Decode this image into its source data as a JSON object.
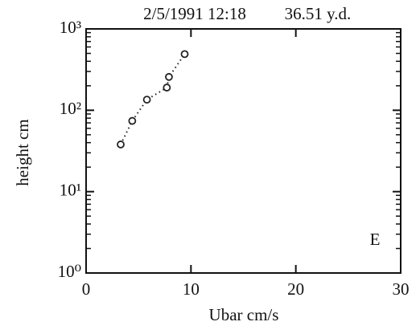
{
  "chart_data": {
    "type": "line",
    "title": "2/5/1991 12:18",
    "subtitle": "36.51 y.d.",
    "x_label": "Ubar cm/s",
    "y_label": "height cm",
    "annotation": "E",
    "x": [
      3.3,
      4.4,
      5.8,
      7.7,
      7.9,
      9.4
    ],
    "series": [
      {
        "values": [
          38,
          74,
          135,
          190,
          257,
          490
        ],
        "color": "#222"
      }
    ],
    "xlim": [
      0,
      30
    ],
    "xticks": [
      0,
      10,
      20,
      30
    ],
    "ylim": [
      1,
      1000
    ],
    "yticks": [
      {
        "value": 1,
        "label": "10⁰"
      },
      {
        "value": 10,
        "label": "10¹"
      },
      {
        "value": 100,
        "label": "10²"
      },
      {
        "value": 1000,
        "label": "10³"
      }
    ],
    "ylog": true,
    "marker": "open-circle",
    "line_style": "dotted"
  }
}
